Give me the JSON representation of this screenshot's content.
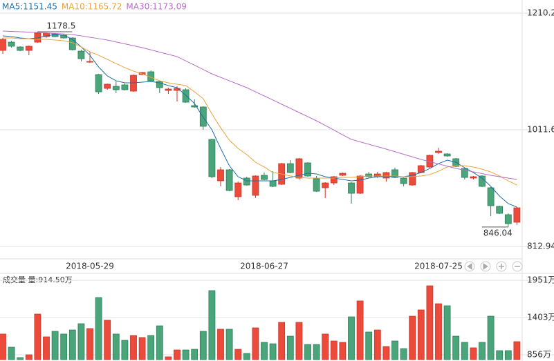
{
  "chart_data": [
    {
      "type": "candlestick",
      "categories": [
        null,
        null,
        null,
        null,
        null,
        null,
        null,
        null,
        null,
        null,
        "2018-05-29",
        null,
        null,
        null,
        null,
        null,
        null,
        null,
        null,
        null,
        null,
        null,
        null,
        null,
        null,
        null,
        null,
        null,
        null,
        null,
        "2018-06-27",
        null,
        null,
        null,
        null,
        null,
        null,
        null,
        null,
        null,
        null,
        null,
        null,
        null,
        null,
        null,
        null,
        null,
        null,
        null,
        "2018-07-25",
        null,
        null,
        null,
        null,
        null,
        null,
        null,
        null,
        null
      ],
      "open": [
        1146.7,
        1160.8,
        1152.6,
        1146.7,
        1160.8,
        1170.2,
        1174.9,
        1172.6,
        1167.9,
        1145.5,
        1126.8,
        1105.6,
        1082.1,
        1085.6,
        1088.0,
        1077.4,
        1105.6,
        1110.3,
        1093.9,
        1078.6,
        1078.6,
        1079.8,
        1052.7,
        1050.4,
        995.2,
        924.7,
        943.5,
        897.6,
        929.4,
        900.0,
        934.1,
        924.7,
        918.8,
        954.0,
        929.4,
        955.2,
        928.2,
        912.9,
        921.1,
        934.1,
        921.1,
        903.5,
        936.4,
        931.7,
        929.4,
        943.5,
        929.4,
        917.6,
        938.8,
        948.2,
        972.8,
        970.5,
        962.3,
        945.8,
        929.4,
        932.9,
        912.9,
        881.2,
        867.1,
        854.2
      ],
      "high": [
        1167.9,
        1163.2,
        1153.8,
        1155.0,
        1178.5,
        1177.13,
        1176.1,
        1174.9,
        1169.0,
        1147.9,
        1143.2,
        1106.8,
        1090.4,
        1093.9,
        1090.4,
        1105.6,
        1110.3,
        1112.6,
        1095.0,
        1083.3,
        1085.6,
        1082.1,
        1063.3,
        1051.6,
        996.4,
        948.2,
        944.7,
        923.5,
        931.7,
        934.1,
        938.8,
        941.1,
        955.2,
        959.9,
        963.5,
        956.4,
        932.9,
        922.3,
        932.9,
        938.8,
        922.3,
        934.1,
        940.0,
        940.0,
        940.0,
        947.0,
        930.5,
        940.0,
        951.7,
        969.3,
        981.0,
        971.6,
        963.5,
        947.0,
        932.9,
        934.1,
        914.1,
        882.4,
        869.4,
        880.0
      ],
      "low": [
        1140.9,
        1151.4,
        1145.5,
        1138.5,
        1159.7,
        1168.0,
        1169.0,
        1166.7,
        1146.7,
        1127.9,
        1125.6,
        1072.7,
        1079.8,
        1073.9,
        1078.6,
        1076.2,
        1104.4,
        1093.9,
        1073.9,
        1072.7,
        1059.8,
        1057.5,
        1049.2,
        1011.6,
        929.4,
        915.3,
        907.0,
        891.8,
        916.4,
        895.3,
        925.8,
        914.1,
        917.6,
        937.6,
        927.0,
        931.7,
        905.9,
        895.3,
        917.6,
        932.9,
        885.9,
        902.3,
        930.5,
        929.4,
        923.5,
        929.4,
        915.3,
        916.4,
        937.6,
        947.0,
        970.5,
        965.8,
        948.2,
        927.0,
        927.0,
        914.1,
        864.7,
        868.2,
        846.04,
        849.5
      ],
      "close": [
        1165.5,
        1153.8,
        1146.7,
        1153.8,
        1176.1,
        1176.1,
        1170.2,
        1167.9,
        1147.9,
        1132.6,
        1127.9,
        1076.2,
        1089.2,
        1079.8,
        1079.8,
        1104.4,
        1109.1,
        1095.0,
        1083.3,
        1080.9,
        1082.1,
        1058.6,
        1050.4,
        1017.5,
        931.7,
        943.5,
        908.2,
        921.1,
        917.6,
        932.9,
        927.0,
        915.3,
        954.0,
        938.8,
        962.3,
        932.9,
        907.0,
        921.1,
        931.7,
        937.6,
        903.5,
        932.9,
        931.7,
        936.4,
        938.8,
        930.5,
        920.0,
        938.8,
        950.5,
        968.1,
        975.2,
        967.0,
        949.3,
        930.5,
        931.7,
        915.3,
        882.4,
        869.4,
        851.8,
        878.8
      ],
      "up_color": "#ec4a3a",
      "down_color": "#4aa57a",
      "series": [
        {
          "name": "MA5:1151.45",
          "color": "#1f6ea5",
          "values": [
            1171.4,
            1170.2,
            1167.9,
            1166.7,
            1167.9,
            1171.4,
            1173.8,
            1172.6,
            1165.5,
            1152.6,
            1138.5,
            1118.5,
            1103.3,
            1095.0,
            1091.5,
            1091.5,
            1092.7,
            1093.9,
            1091.5,
            1086.8,
            1083.3,
            1070.4,
            1056.3,
            1032.8,
            1011.6,
            979.9,
            950.5,
            931.7,
            924.7,
            924.7,
            924.7,
            924.7,
            927.0,
            930.5,
            934.1,
            937.6,
            936.4,
            931.7,
            929.4,
            927.0,
            924.7,
            925.8,
            929.4,
            931.7,
            931.7,
            931.7,
            931.7,
            934.1,
            938.8,
            945.8,
            954.0,
            959.9,
            956.4,
            947.0,
            938.8,
            929.4,
            915.3,
            898.8,
            885.9,
            880.0
          ]
        },
        {
          "name": "MA10:1165.72",
          "color": "#e9a33d",
          "values": [
            1167.9,
            1167.9,
            1166.7,
            1166.7,
            1165.5,
            1165.5,
            1164.4,
            1163.2,
            1159.7,
            1152.6,
            1144.4,
            1138.5,
            1131.5,
            1124.4,
            1117.4,
            1111.5,
            1106.8,
            1100.9,
            1095.0,
            1091.5,
            1089.2,
            1086.8,
            1076.2,
            1064.5,
            1038.6,
            1015.1,
            994.0,
            979.9,
            969.3,
            956.4,
            948.2,
            938.8,
            936.4,
            932.9,
            930.5,
            929.4,
            929.4,
            929.4,
            929.4,
            930.5,
            930.5,
            931.7,
            932.9,
            932.9,
            932.9,
            932.9,
            931.7,
            931.7,
            932.9,
            935.2,
            941.1,
            948.2,
            950.5,
            950.5,
            948.2,
            944.6,
            939.9,
            932.9,
            924.7,
            917.6
          ]
        },
        {
          "name": "MA30:1173.09",
          "color": "#b56ec6",
          "values": [
            1179.6,
            1179.0,
            1178.5,
            1177.9,
            1177.3,
            1176.4,
            1175.6,
            1174.7,
            1173.8,
            1171.5,
            1169.1,
            1166.8,
            1164.4,
            1161.2,
            1157.9,
            1154.7,
            1151.4,
            1147.6,
            1143.8,
            1140.0,
            1136.2,
            1128.9,
            1121.5,
            1114.2,
            1106.8,
            1100.9,
            1095.0,
            1089.2,
            1083.3,
            1076.3,
            1069.2,
            1062.2,
            1055.1,
            1048.1,
            1041.0,
            1034.0,
            1026.9,
            1019.0,
            1011.1,
            1003.1,
            995.2,
            991.1,
            986.9,
            982.8,
            978.7,
            974.3,
            969.9,
            965.5,
            961.1,
            957.3,
            953.5,
            949.6,
            945.8,
            942.9,
            940.0,
            937.0,
            934.1,
            931.7,
            929.4,
            927.0
          ]
        }
      ],
      "ylim": [
        791.9,
        1210.2
      ],
      "yticks": [
        812.94,
        1011.6,
        1210.2
      ],
      "grid": true
    },
    {
      "type": "bar",
      "title": "成交量 量:914.50万",
      "values": [
        1161,
        968,
        815,
        856,
        1455,
        1120,
        1201,
        1161,
        1221,
        1313,
        1242,
        1698,
        1364,
        1161,
        1069,
        1140,
        1110,
        1140,
        1282,
        826,
        927,
        927,
        937,
        1201,
        1800,
        1232,
        1232,
        937,
        876,
        1252,
        1039,
        1018,
        1333,
        1130,
        1333,
        1008,
        1008,
        1161,
        1059,
        1039,
        1414,
        1648,
        1191,
        1221,
        978,
        1059,
        947,
        1424,
        1516,
        1871,
        1607,
        1577,
        1130,
        1039,
        958,
        1039,
        1424,
        917,
        917,
        1049
      ],
      "ylim": [
        785,
        2054
      ],
      "yticks": [
        {
          "value": 856,
          "label": "856万"
        },
        {
          "value": 1403,
          "label": "1403万"
        },
        {
          "value": 1951,
          "label": "1951万"
        }
      ],
      "grid": true
    }
  ]
}
